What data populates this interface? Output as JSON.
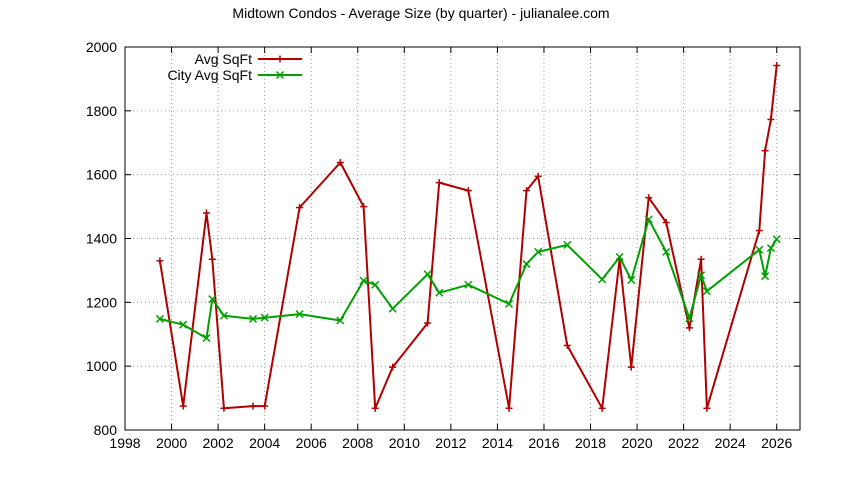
{
  "chart_data": {
    "type": "line",
    "title": "Midtown Condos - Average Size (by quarter) - julianalee.com",
    "xlabel": "",
    "ylabel": "",
    "xlim": [
      1998,
      2027
    ],
    "ylim": [
      800,
      2000
    ],
    "xticks": [
      1998,
      2000,
      2002,
      2004,
      2006,
      2008,
      2010,
      2012,
      2014,
      2016,
      2018,
      2020,
      2022,
      2024,
      2026
    ],
    "yticks": [
      800,
      1000,
      1200,
      1400,
      1600,
      1800,
      2000
    ],
    "grid": true,
    "legend_position": "top-left",
    "series": [
      {
        "name": "Avg SqFt",
        "color": "#b00000",
        "marker": "plus",
        "points": [
          [
            1999.5,
            1330
          ],
          [
            2000.5,
            875
          ],
          [
            2001.5,
            1480
          ],
          [
            2001.75,
            1335
          ],
          [
            2002.25,
            868
          ],
          [
            2003.5,
            875
          ],
          [
            2004.0,
            875
          ],
          [
            2005.5,
            1497
          ],
          [
            2007.25,
            1638
          ],
          [
            2008.25,
            1500
          ],
          [
            2008.75,
            868
          ],
          [
            2009.5,
            997
          ],
          [
            2011.0,
            1135
          ],
          [
            2011.5,
            1575
          ],
          [
            2012.75,
            1550
          ],
          [
            2014.5,
            868
          ],
          [
            2015.25,
            1550
          ],
          [
            2015.75,
            1595
          ],
          [
            2017.0,
            1065
          ],
          [
            2018.5,
            868
          ],
          [
            2019.25,
            1335
          ],
          [
            2019.75,
            997
          ],
          [
            2020.5,
            1528
          ],
          [
            2021.25,
            1450
          ],
          [
            2022.25,
            1120
          ],
          [
            2022.75,
            1335
          ],
          [
            2023.0,
            868
          ],
          [
            2025.25,
            1425
          ],
          [
            2025.5,
            1675
          ],
          [
            2025.75,
            1773
          ],
          [
            2026.0,
            1942
          ]
        ]
      },
      {
        "name": "City Avg SqFt",
        "color": "#00a000",
        "marker": "cross",
        "points": [
          [
            1999.5,
            1148
          ],
          [
            2000.5,
            1130
          ],
          [
            2001.5,
            1088
          ],
          [
            2001.75,
            1210
          ],
          [
            2002.25,
            1158
          ],
          [
            2003.5,
            1148
          ],
          [
            2004.0,
            1152
          ],
          [
            2005.5,
            1163
          ],
          [
            2007.25,
            1143
          ],
          [
            2008.25,
            1268
          ],
          [
            2008.75,
            1255
          ],
          [
            2009.5,
            1180
          ],
          [
            2011.0,
            1288
          ],
          [
            2011.5,
            1230
          ],
          [
            2012.75,
            1255
          ],
          [
            2014.5,
            1195
          ],
          [
            2015.25,
            1320
          ],
          [
            2015.75,
            1358
          ],
          [
            2017.0,
            1380
          ],
          [
            2018.5,
            1272
          ],
          [
            2019.25,
            1342
          ],
          [
            2019.75,
            1270
          ],
          [
            2020.5,
            1460
          ],
          [
            2021.25,
            1358
          ],
          [
            2022.25,
            1150
          ],
          [
            2022.75,
            1285
          ],
          [
            2023.0,
            1235
          ],
          [
            2025.25,
            1365
          ],
          [
            2025.5,
            1282
          ],
          [
            2025.75,
            1370
          ],
          [
            2026.0,
            1398
          ]
        ]
      }
    ]
  }
}
